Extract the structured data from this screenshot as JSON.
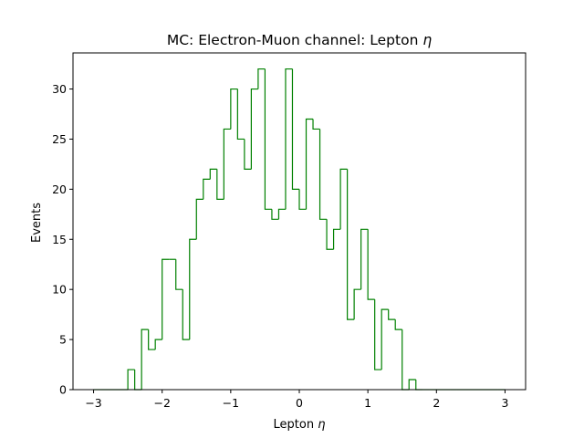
{
  "chart_data": {
    "type": "bar",
    "histtype": "step",
    "title": "MC: Electron-Muon channel: Lepton η",
    "xlabel": "Lepton η",
    "ylabel": "Events",
    "xlim": [
      -3.3,
      3.3
    ],
    "ylim": [
      0,
      33.6
    ],
    "xticks": [
      -3,
      -2,
      -1,
      0,
      1,
      2,
      3
    ],
    "yticks": [
      0,
      5,
      10,
      15,
      20,
      25,
      30
    ],
    "bin_edges": [
      -3.0,
      -2.9,
      -2.8,
      -2.7,
      -2.6,
      -2.5,
      -2.4,
      -2.3,
      -2.2,
      -2.1,
      -2.0,
      -1.9,
      -1.8,
      -1.7,
      -1.6,
      -1.5,
      -1.4,
      -1.3,
      -1.2,
      -1.1,
      -1.0,
      -0.9,
      -0.8,
      -0.7,
      -0.6,
      -0.5,
      -0.4,
      -0.3,
      -0.2,
      -0.1,
      0.0,
      0.1,
      0.2,
      0.3,
      0.4,
      0.5,
      0.6,
      0.7,
      0.8,
      0.9,
      1.0,
      1.1,
      1.2,
      1.3,
      1.4,
      1.5,
      1.6,
      1.7,
      1.8,
      1.9,
      2.0,
      2.1,
      2.2,
      2.3,
      2.4,
      2.5,
      2.6,
      2.7,
      2.8,
      2.9,
      3.0
    ],
    "counts": [
      0,
      0,
      0,
      0,
      0,
      2,
      0,
      6,
      4,
      5,
      13,
      13,
      10,
      5,
      15,
      19,
      21,
      22,
      19,
      26,
      30,
      25,
      22,
      30,
      32,
      18,
      17,
      18,
      32,
      20,
      18,
      27,
      26,
      17,
      14,
      16,
      22,
      7,
      10,
      16,
      9,
      2,
      8,
      7,
      6,
      0,
      1,
      0,
      0,
      0,
      0,
      0,
      0,
      0,
      0,
      0,
      0,
      0,
      0,
      0
    ],
    "series": [
      {
        "name": "",
        "color": "#008000"
      }
    ],
    "grid": false
  }
}
